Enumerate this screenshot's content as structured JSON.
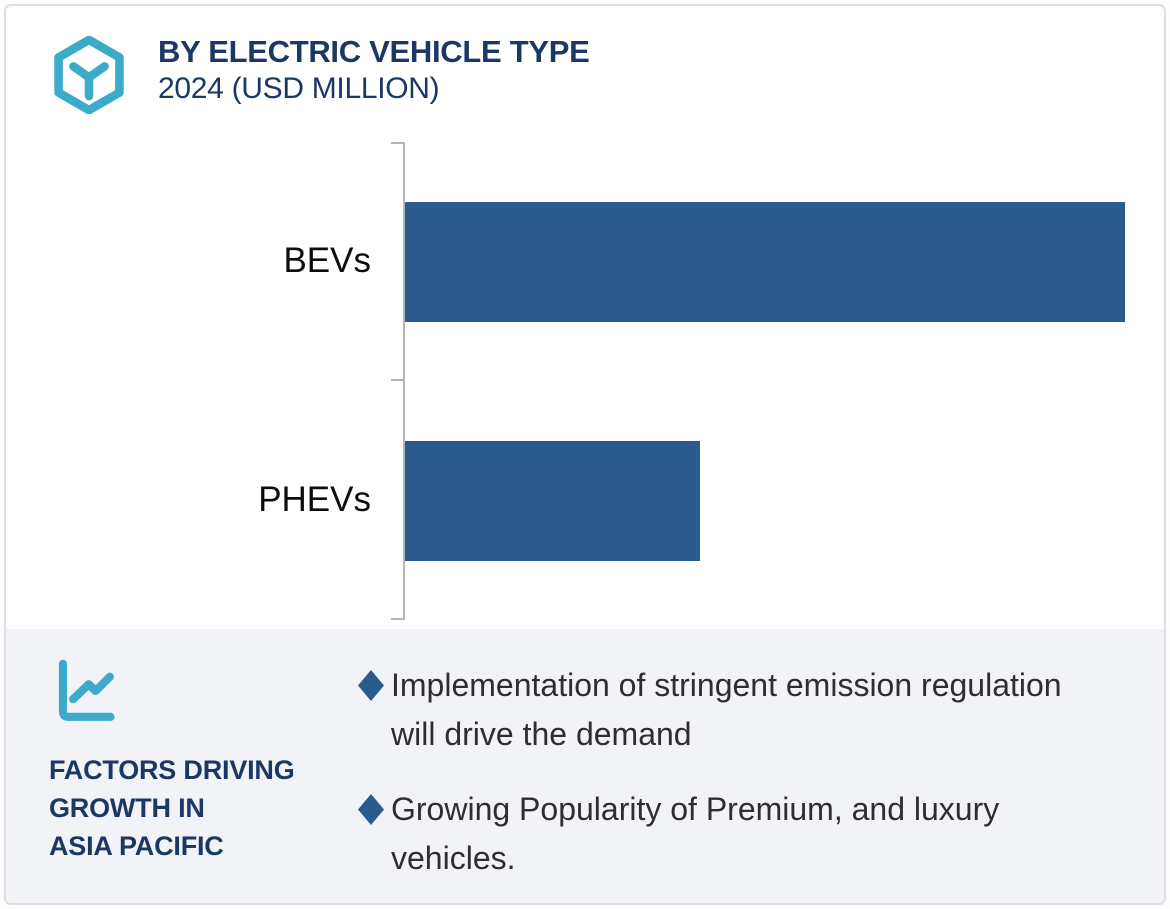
{
  "header": {
    "title": "BY ELECTRIC VEHICLE TYPE",
    "subtitle": "2024 (USD MILLION)",
    "icon": "hexagon-box-icon"
  },
  "chart_data": {
    "type": "bar",
    "orientation": "horizontal",
    "title": "BY ELECTRIC VEHICLE TYPE",
    "subtitle": "2024 (USD MILLION)",
    "categories": [
      "BEVs",
      "PHEVs"
    ],
    "series": [
      {
        "name": "2024 market size (USD Million)",
        "values_relative": [
          1.0,
          0.41
        ]
      }
    ],
    "value_labels_shown": false,
    "axis_value_ticks_shown": false,
    "grid": false,
    "legend": "none",
    "bar_color": "#2b5b8d",
    "axis_color": "#b3b5b6"
  },
  "insights": {
    "icon": "line-chart-icon",
    "title_lines": [
      "FACTORS DRIVING",
      "GROWTH IN",
      "ASIA PACIFIC"
    ],
    "title_text": "FACTORS DRIVING GROWTH IN ASIA PACIFIC",
    "bullets": [
      {
        "text": "Implementation of stringent emission regulation will drive the demand"
      },
      {
        "text": "Growing Popularity of Premium, and luxury vehicles."
      }
    ]
  },
  "colors": {
    "accent_teal": "#3babc9",
    "navy": "#1b3764",
    "bar_blue": "#2b5b8d",
    "panel_gray": "#f2f3f7",
    "border_gray": "#dcdee4",
    "axis_gray": "#b3b5b6",
    "body_text": "#2e2e2e"
  }
}
